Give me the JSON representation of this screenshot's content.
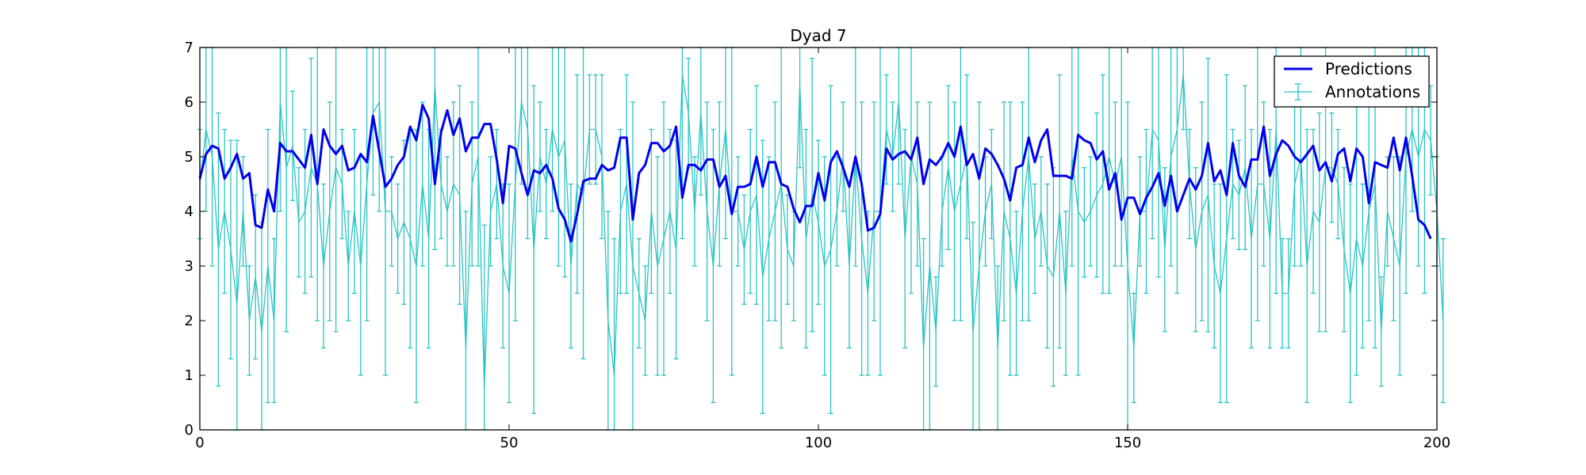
{
  "chart_data": {
    "type": "line",
    "title": "Dyad 7",
    "xlabel": "",
    "ylabel": "",
    "xlim": [
      0,
      200
    ],
    "ylim": [
      0,
      7
    ],
    "xticks": [
      0,
      50,
      100,
      150,
      200
    ],
    "yticks": [
      0,
      1,
      2,
      3,
      4,
      5,
      6,
      7
    ],
    "grid": false,
    "legend_position": "top-right",
    "colors": {
      "predictions": "#0000ee",
      "annotations": "#2ac3c3"
    },
    "series": [
      {
        "name": "Predictions",
        "style": "line",
        "values": [
          4.6,
          5.05,
          5.2,
          5.15,
          4.6,
          4.8,
          5.05,
          4.6,
          4.7,
          3.75,
          3.7,
          4.4,
          4.0,
          5.25,
          5.1,
          5.1,
          4.95,
          4.8,
          5.4,
          4.5,
          5.5,
          5.2,
          5.05,
          5.2,
          4.75,
          4.8,
          5.05,
          4.9,
          5.75,
          5.1,
          4.45,
          4.6,
          4.85,
          5.0,
          5.55,
          5.3,
          5.95,
          5.7,
          4.5,
          5.45,
          5.85,
          5.4,
          5.7,
          5.1,
          5.35,
          5.35,
          5.6,
          5.6,
          4.95,
          4.15,
          5.2,
          5.15,
          4.7,
          4.3,
          4.75,
          4.7,
          4.85,
          4.6,
          4.05,
          3.85,
          3.45,
          3.95,
          4.55,
          4.6,
          4.6,
          4.85,
          4.75,
          4.8,
          5.35,
          5.35,
          3.85,
          4.7,
          4.85,
          5.25,
          5.25,
          5.1,
          5.2,
          5.55,
          4.25,
          4.85,
          4.85,
          4.75,
          4.95,
          4.95,
          4.45,
          4.65,
          3.95,
          4.45,
          4.45,
          4.5,
          5.0,
          4.45,
          4.9,
          4.9,
          4.5,
          4.45,
          4.05,
          3.8,
          4.1,
          4.1,
          4.7,
          4.2,
          4.9,
          5.1,
          4.8,
          4.45,
          5.0,
          4.5,
          3.65,
          3.7,
          3.95,
          5.15,
          4.95,
          5.05,
          5.1,
          4.95,
          5.35,
          4.5,
          4.95,
          4.85,
          5.0,
          5.25,
          5.0,
          5.55,
          4.85,
          5.05,
          4.6,
          5.15,
          5.05,
          4.85,
          4.6,
          4.2,
          4.8,
          4.85,
          5.35,
          4.9,
          5.3,
          5.5,
          4.65,
          4.65,
          4.65,
          4.6,
          5.4,
          5.3,
          5.25,
          4.95,
          5.1,
          4.4,
          4.7,
          3.85,
          4.25,
          4.25,
          3.95,
          4.25,
          4.45,
          4.7,
          4.1,
          4.65,
          4.0,
          4.3,
          4.6,
          4.4,
          4.65,
          5.25,
          4.55,
          4.75,
          4.3,
          5.25,
          4.65,
          4.45,
          4.95,
          4.95,
          5.55,
          4.65,
          5.05,
          5.3,
          5.2,
          5.0,
          4.9,
          5.05,
          5.2,
          4.75,
          4.9,
          4.55,
          5.05,
          5.15,
          4.55,
          5.15,
          5.0,
          4.15,
          4.9,
          4.85,
          4.8,
          5.35,
          4.75,
          5.35,
          4.65,
          3.85,
          3.75,
          3.5
        ]
      },
      {
        "name": "Annotations",
        "style": "errorbar",
        "values": [
          4.5,
          5.5,
          5.0,
          3.3,
          4.0,
          3.3,
          2.3,
          4.0,
          2.0,
          2.8,
          1.8,
          3.0,
          2.0,
          6.0,
          4.8,
          5.2,
          3.8,
          4.0,
          4.8,
          4.5,
          3.0,
          4.0,
          4.8,
          4.5,
          3.0,
          4.0,
          3.0,
          4.5,
          5.8,
          6.0,
          4.0,
          4.0,
          3.5,
          3.8,
          3.5,
          3.0,
          4.5,
          3.5,
          6.3,
          4.5,
          4.0,
          4.5,
          4.3,
          1.5,
          4.5,
          5.0,
          0.75,
          4.0,
          4.5,
          3.0,
          2.5,
          4.5,
          6.0,
          5.5,
          3.3,
          5.0,
          4.5,
          5.5,
          5.0,
          5.3,
          3.0,
          4.5,
          4.3,
          5.5,
          5.5,
          5.0,
          2.0,
          1.0,
          4.0,
          4.5,
          3.0,
          2.5,
          2.0,
          4.0,
          3.0,
          3.5,
          4.0,
          3.3,
          6.5,
          5.8,
          4.0,
          5.8,
          4.0,
          3.0,
          4.5,
          5.5,
          4.0,
          4.0,
          3.3,
          4.0,
          4.3,
          2.8,
          3.5,
          4.0,
          4.5,
          3.3,
          3.0,
          6.3,
          3.5,
          4.3,
          3.8,
          3.0,
          3.3,
          4.0,
          5.0,
          3.0,
          5.0,
          3.5,
          2.5,
          4.0,
          4.0,
          5.5,
          5.0,
          6.0,
          3.5,
          5.0,
          4.5,
          1.5,
          3.0,
          1.8,
          4.0,
          4.8,
          4.0,
          4.5,
          5.0,
          1.8,
          3.0,
          4.0,
          4.5,
          1.5,
          4.0,
          3.5,
          2.5,
          4.0,
          5.0,
          3.5,
          4.0,
          3.0,
          2.8,
          4.0,
          2.5,
          5.0,
          4.0,
          3.8,
          4.0,
          4.3,
          4.5,
          5.0,
          4.5,
          5.0,
          3.0,
          1.5,
          4.0,
          4.0,
          5.5,
          5.3,
          3.3,
          5.0,
          5.5,
          6.5,
          4.5,
          3.3,
          4.0,
          4.3,
          3.0,
          2.5,
          3.5,
          4.5,
          4.3,
          4.8,
          3.5,
          4.5,
          4.5,
          3.5,
          5.5,
          2.5,
          2.5,
          4.5,
          5.0,
          3.0,
          4.0,
          3.8,
          4.8,
          4.8,
          4.5,
          3.3,
          2.5,
          3.5,
          3.0,
          4.0,
          4.5,
          1.8,
          4.0,
          3.5,
          3.0,
          5.0,
          5.5,
          5.0,
          5.5,
          5.3,
          4.0,
          2.0
        ]
      }
    ]
  }
}
